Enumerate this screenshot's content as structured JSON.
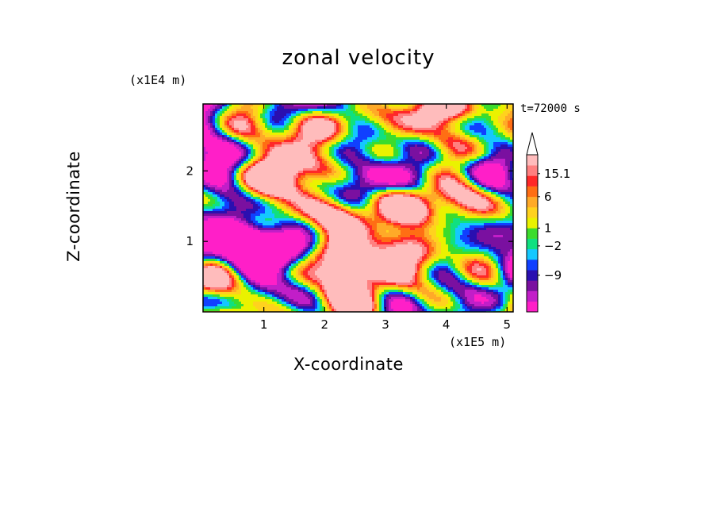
{
  "chart_data": {
    "type": "heatmap",
    "title": "zonal velocity",
    "xlabel": "X-coordinate",
    "ylabel": "Z-coordinate",
    "x_unit_label": "(x1E5 m)",
    "y_unit_label": "(x1E4 m)",
    "time_label": "t=72000 s",
    "xlim": [
      0.0,
      5.1
    ],
    "ylim": [
      0.0,
      2.95
    ],
    "x_ticks": [
      1,
      2,
      3,
      4,
      5
    ],
    "y_ticks": [
      1,
      2
    ],
    "x_tick_labels": [
      "1",
      "2",
      "3",
      "4",
      "5"
    ],
    "y_tick_labels": [
      "1",
      "2"
    ],
    "colorbar": {
      "levels": [
        -15.1,
        -12,
        -9,
        -6,
        -3,
        -2,
        -1,
        0,
        1,
        2,
        3,
        6,
        9,
        12,
        15.1
      ],
      "colors": [
        "#ff1fc8",
        "#c21ec8",
        "#7a10a0",
        "#2a0fb0",
        "#1040ff",
        "#14c8ff",
        "#10e080",
        "#3cdc2c",
        "#eaf200",
        "#ffd21e",
        "#ffaa28",
        "#ff6e14",
        "#ff2828",
        "#ff8080",
        "#ffbcbc"
      ],
      "labels": [
        {
          "text": "15.1",
          "value": 15.1
        },
        {
          "text": "6",
          "value": 6
        },
        {
          "text": "1",
          "value": 1
        },
        {
          "text": "−2",
          "value": -2
        },
        {
          "text": "−9",
          "value": -9
        }
      ],
      "extend": "max"
    }
  }
}
